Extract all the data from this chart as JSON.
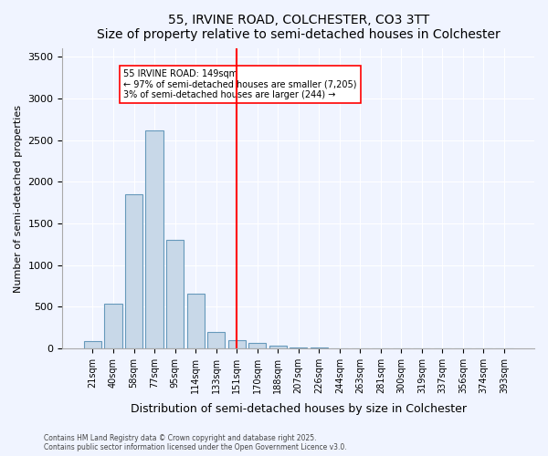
{
  "title1": "55, IRVINE ROAD, COLCHESTER, CO3 3TT",
  "title2": "Size of property relative to semi-detached houses in Colchester",
  "xlabel": "Distribution of semi-detached houses by size in Colchester",
  "ylabel": "Number of semi-detached properties",
  "categories": [
    "21sqm",
    "40sqm",
    "58sqm",
    "77sqm",
    "95sqm",
    "114sqm",
    "133sqm",
    "151sqm",
    "170sqm",
    "188sqm",
    "207sqm",
    "226sqm",
    "244sqm",
    "263sqm",
    "281sqm",
    "300sqm",
    "319sqm",
    "337sqm",
    "356sqm",
    "374sqm",
    "393sqm"
  ],
  "values": [
    80,
    530,
    1850,
    2620,
    1300,
    650,
    200,
    100,
    60,
    30,
    10,
    5,
    2,
    0,
    0,
    0,
    0,
    0,
    0,
    0,
    0
  ],
  "bar_color": "#c8d8e8",
  "bar_edge_color": "#6699bb",
  "vline_x": 7,
  "vline_label": "149sqm",
  "annotation_title": "55 IRVINE ROAD: 149sqm",
  "annotation_line1": "← 97% of semi-detached houses are smaller (7,205)",
  "annotation_line2": "3% of semi-detached houses are larger (244) →",
  "ylim": [
    0,
    3600
  ],
  "yticks": [
    0,
    500,
    1000,
    1500,
    2000,
    2500,
    3000,
    3500
  ],
  "footer1": "Contains HM Land Registry data © Crown copyright and database right 2025.",
  "footer2": "Contains public sector information licensed under the Open Government Licence v3.0.",
  "background_color": "#f0f4ff",
  "plot_bg_color": "#f0f4ff"
}
